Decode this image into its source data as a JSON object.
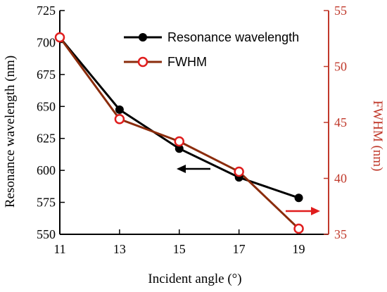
{
  "chart_data": {
    "type": "line",
    "x": [
      11,
      13,
      15,
      17,
      19
    ],
    "xlabel": "Incident angle (°)",
    "xlim": [
      11,
      20
    ],
    "xticks": [
      11,
      13,
      15,
      17,
      19
    ],
    "ylabel_left": "Resonance wavelength (nm)",
    "ylim_left": [
      550,
      725
    ],
    "yticks_left": [
      550,
      575,
      600,
      625,
      650,
      675,
      700,
      725
    ],
    "ylabel_right": "FWHM (nm)",
    "ylim_right": [
      35,
      55
    ],
    "yticks_right": [
      35,
      40,
      45,
      50,
      55
    ],
    "grid": false,
    "legend_position": "top-right",
    "series": [
      {
        "name": "Resonance wavelength",
        "axis": "left",
        "color": "#000000",
        "marker": "filled-circle",
        "values": [
          704,
          647.5,
          617,
          594.5,
          578.5
        ]
      },
      {
        "name": "FWHM",
        "axis": "right",
        "color": "#8b2c0c",
        "marker_color": "#e01d1d",
        "marker": "open-circle",
        "values": [
          52.6,
          45.3,
          43.3,
          40.6,
          35.5
        ]
      }
    ],
    "annotations": [
      {
        "type": "arrow",
        "direction": "left",
        "color": "#000000",
        "meaning": "left-axis"
      },
      {
        "type": "arrow",
        "direction": "right",
        "color": "#e01d1d",
        "meaning": "right-axis"
      }
    ],
    "right_axis_color": "#c0392b"
  }
}
